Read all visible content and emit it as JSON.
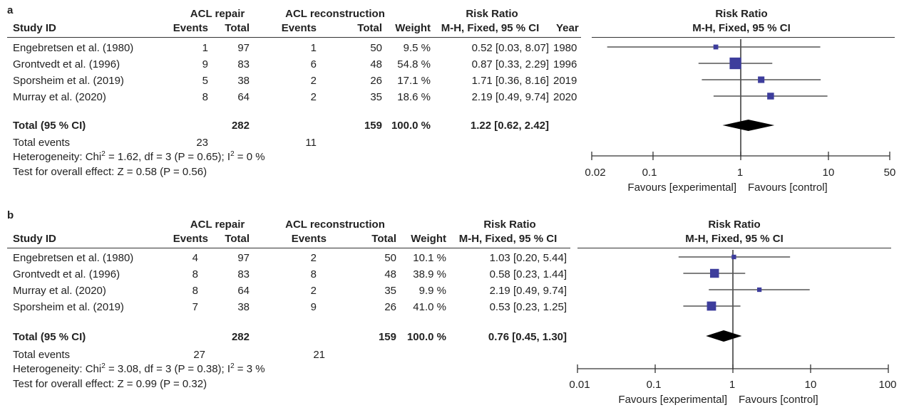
{
  "panel_a": {
    "label": "a",
    "headers": {
      "group1": "ACL repair",
      "group2": "ACL reconstruction",
      "rr": "Risk Ratio",
      "study": "Study ID",
      "events": "Events",
      "total": "Total",
      "weight": "Weight",
      "method": "M-H, Fixed, 95 % CI",
      "year": "Year",
      "plot_title": "Risk Ratio",
      "plot_method": "M-H, Fixed, 95 % CI"
    },
    "rows": [
      {
        "study": "Engebretsen et al. (1980)",
        "e1": "1",
        "t1": "97",
        "e2": "1",
        "t2": "50",
        "weight": "9.5 %",
        "ci": "0.52 [0.03, 8.07]",
        "year": "1980"
      },
      {
        "study": "Grontvedt et al. (1996)",
        "e1": "9",
        "t1": "83",
        "e2": "6",
        "t2": "48",
        "weight": "54.8 %",
        "ci": "0.87 [0.33, 2.29]",
        "year": "1996"
      },
      {
        "study": "Sporsheim et al. (2019)",
        "e1": "5",
        "t1": "38",
        "e2": "2",
        "t2": "26",
        "weight": "17.1 %",
        "ci": "1.71 [0.36, 8.16]",
        "year": "2019"
      },
      {
        "study": "Murray et al. (2020)",
        "e1": "8",
        "t1": "64",
        "e2": "2",
        "t2": "35",
        "weight": "18.6 %",
        "ci": "2.19 [0.49, 9.74]",
        "year": "2020"
      }
    ],
    "total": {
      "label": "Total (95 % CI)",
      "t1": "282",
      "t2": "159",
      "weight": "100.0 %",
      "ci": "1.22 [0.62, 2.42]"
    },
    "total_events": {
      "label": "Total events",
      "e1": "23",
      "e2": "11"
    },
    "heterogeneity": {
      "prefix": "Heterogeneity: Chi",
      "mid": " = 1.62, df = 3 (P = 0.65); I",
      "suffix": " = 0 %"
    },
    "overall": "Test for overall effect: Z = 0.58 (P = 0.56)",
    "favours_left": "Favours [experimental]",
    "favours_right": "Favours [control]"
  },
  "panel_b": {
    "label": "b",
    "headers": {
      "group1": "ACL repair",
      "group2": "ACL reconstruction",
      "rr": "Risk Ratio",
      "study": "Study ID",
      "events": "Events",
      "total": "Total",
      "weight": "Weight",
      "method": "M-H, Fixed, 95 % CI",
      "plot_title": "Risk Ratio",
      "plot_method": "M-H, Fixed, 95 % CI"
    },
    "rows": [
      {
        "study": "Engebretsen et al. (1980)",
        "e1": "4",
        "t1": "97",
        "e2": "2",
        "t2": "50",
        "weight": "10.1 %",
        "ci": "1.03 [0.20, 5.44]"
      },
      {
        "study": "Grontvedt et al. (1996)",
        "e1": "8",
        "t1": "83",
        "e2": "8",
        "t2": "48",
        "weight": "38.9 %",
        "ci": "0.58 [0.23, 1.44]"
      },
      {
        "study": "Murray et al. (2020)",
        "e1": "8",
        "t1": "64",
        "e2": "2",
        "t2": "35",
        "weight": "9.9 %",
        "ci": "2.19 [0.49, 9.74]"
      },
      {
        "study": "Sporsheim et al. (2019)",
        "e1": "7",
        "t1": "38",
        "e2": "9",
        "t2": "26",
        "weight": "41.0 %",
        "ci": "0.53 [0.23, 1.25]"
      }
    ],
    "total": {
      "label": "Total (95 % CI)",
      "t1": "282",
      "t2": "159",
      "weight": "100.0 %",
      "ci": "0.76 [0.45, 1.30]"
    },
    "total_events": {
      "label": "Total events",
      "e1": "27",
      "e2": "21"
    },
    "heterogeneity": {
      "prefix": "Heterogeneity: Chi",
      "mid": " = 3.08, df = 3 (P = 0.38); I",
      "suffix": " = 3 %"
    },
    "overall": "Test for overall effect: Z = 0.99 (P = 0.32)",
    "favours_left": "Favours [experimental]",
    "favours_right": "Favours [control]"
  },
  "colors": {
    "marker": "#3d3d9c",
    "ci_line": "#555555",
    "diamond": "#000000",
    "axis": "#333333"
  },
  "chart_data": [
    {
      "type": "forest",
      "scale": "log",
      "xlim": [
        0.02,
        50
      ],
      "ticks": [
        0.02,
        0.1,
        1,
        10,
        50
      ],
      "tick_labels": [
        "0.02",
        "0.1",
        "1",
        "10",
        "50"
      ],
      "title": "Risk Ratio",
      "subtitle": "M-H, Fixed, 95 % CI",
      "studies": [
        {
          "name": "Engebretsen et al. (1980)",
          "rr": 0.52,
          "lo": 0.03,
          "hi": 8.07,
          "weight": 9.5
        },
        {
          "name": "Grontvedt et al. (1996)",
          "rr": 0.87,
          "lo": 0.33,
          "hi": 2.29,
          "weight": 54.8
        },
        {
          "name": "Sporsheim et al. (2019)",
          "rr": 1.71,
          "lo": 0.36,
          "hi": 8.16,
          "weight": 17.1
        },
        {
          "name": "Murray et al. (2020)",
          "rr": 2.19,
          "lo": 0.49,
          "hi": 9.74,
          "weight": 18.6
        }
      ],
      "pooled": {
        "rr": 1.22,
        "lo": 0.62,
        "hi": 2.42
      }
    },
    {
      "type": "forest",
      "scale": "log",
      "xlim": [
        0.01,
        100
      ],
      "ticks": [
        0.01,
        0.1,
        1,
        10,
        100
      ],
      "tick_labels": [
        "0.01",
        "0.1",
        "1",
        "10",
        "100"
      ],
      "title": "Risk Ratio",
      "subtitle": "M-H, Fixed, 95 % CI",
      "studies": [
        {
          "name": "Engebretsen et al. (1980)",
          "rr": 1.03,
          "lo": 0.2,
          "hi": 5.44,
          "weight": 10.1
        },
        {
          "name": "Grontvedt et al. (1996)",
          "rr": 0.58,
          "lo": 0.23,
          "hi": 1.44,
          "weight": 38.9
        },
        {
          "name": "Murray et al. (2020)",
          "rr": 2.19,
          "lo": 0.49,
          "hi": 9.74,
          "weight": 9.9
        },
        {
          "name": "Sporsheim et al. (2019)",
          "rr": 0.53,
          "lo": 0.23,
          "hi": 1.25,
          "weight": 41.0
        }
      ],
      "pooled": {
        "rr": 0.76,
        "lo": 0.45,
        "hi": 1.3
      }
    }
  ]
}
